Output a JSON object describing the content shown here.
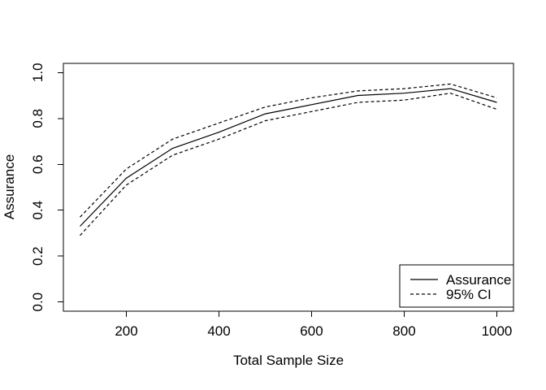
{
  "colors": {
    "background": "#ffffff",
    "line": "#000000",
    "text": "#000000"
  },
  "chart_data": {
    "type": "line",
    "title": "",
    "xlabel": "Total Sample Size",
    "ylabel": "Assurance",
    "xlim": [
      100,
      1000
    ],
    "ylim": [
      0,
      1
    ],
    "axis_padding_fraction": 0.04,
    "grid": false,
    "x": [
      100,
      200,
      300,
      400,
      500,
      600,
      700,
      800,
      900,
      1000
    ],
    "series": [
      {
        "name": "Assurance",
        "style": "solid",
        "values": [
          0.33,
          0.54,
          0.67,
          0.74,
          0.82,
          0.86,
          0.9,
          0.91,
          0.93,
          0.87
        ]
      },
      {
        "name": "95% CI upper",
        "style": "dashed",
        "values": [
          0.37,
          0.58,
          0.71,
          0.78,
          0.85,
          0.89,
          0.92,
          0.93,
          0.95,
          0.89
        ]
      },
      {
        "name": "95% CI lower",
        "style": "dashed",
        "values": [
          0.29,
          0.51,
          0.64,
          0.71,
          0.79,
          0.83,
          0.87,
          0.88,
          0.91,
          0.84
        ]
      }
    ],
    "xticks": [
      "200",
      "400",
      "600",
      "800",
      "1000"
    ],
    "yticks": [
      "0.0",
      "0.2",
      "0.4",
      "0.6",
      "0.8",
      "1.0"
    ],
    "legend": {
      "position": "bottom-right",
      "entries": [
        {
          "label": "Assurance",
          "style": "solid"
        },
        {
          "label": "95% CI",
          "style": "dashed"
        }
      ]
    }
  }
}
